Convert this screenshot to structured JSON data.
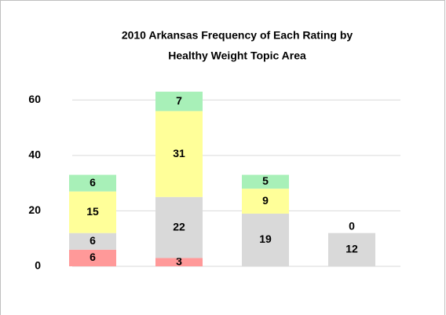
{
  "chart_data": {
    "type": "stacked-bar",
    "title": [
      "2010 Arkansas Frequency of Each Rating by",
      "Healthy Weight Topic Area"
    ],
    "categories": [
      null,
      null,
      null,
      null
    ],
    "series": [
      {
        "color": "#ff9999",
        "values": [
          6,
          3,
          null,
          null
        ]
      },
      {
        "color": "#d9d9d9",
        "values": [
          6,
          22,
          19,
          12
        ]
      },
      {
        "color": "#ffff99",
        "values": [
          15,
          31,
          9,
          null
        ]
      },
      {
        "color": "#a8f0b8",
        "values": [
          6,
          7,
          5,
          0
        ]
      }
    ],
    "ylim": [
      0,
      70
    ],
    "yticks": [
      0,
      20,
      40,
      60
    ],
    "grid": true
  }
}
